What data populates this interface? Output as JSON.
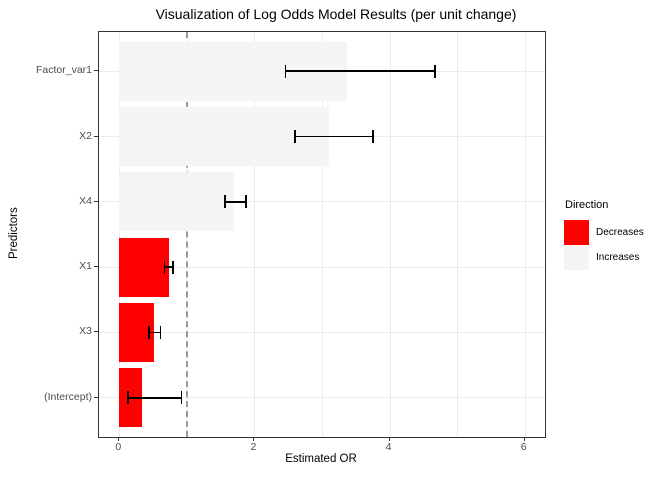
{
  "title": "Visualization of Log Odds Model Results (per unit change)",
  "chart_data": {
    "type": "bar",
    "orientation": "horizontal",
    "title": "Visualization of Log Odds Model Results (per unit change)",
    "xlabel": "Estimated OR",
    "ylabel": "Predictors",
    "xlim": [
      -0.3,
      6.3
    ],
    "x_major_ticks": [
      0,
      2,
      4,
      6
    ],
    "x_gridlines": [
      0,
      1,
      2,
      3,
      4,
      5,
      6
    ],
    "reference_line_x": 1,
    "grid": "on",
    "categories": [
      "Factor_var1",
      "X2",
      "X4",
      "X1",
      "X3",
      "(Intercept)"
    ],
    "bars": [
      {
        "label": "Factor_var1",
        "or": 3.37,
        "ci_low": 2.45,
        "ci_high": 4.68,
        "direction": "Increases"
      },
      {
        "label": "X2",
        "or": 3.1,
        "ci_low": 2.59,
        "ci_high": 3.77,
        "direction": "Increases"
      },
      {
        "label": "X4",
        "or": 1.7,
        "ci_low": 1.55,
        "ci_high": 1.89,
        "direction": "Increases"
      },
      {
        "label": "X1",
        "or": 0.73,
        "ci_low": 0.66,
        "ci_high": 0.81,
        "direction": "Decreases"
      },
      {
        "label": "X3",
        "or": 0.52,
        "ci_low": 0.43,
        "ci_high": 0.62,
        "direction": "Decreases"
      },
      {
        "label": "(Intercept)",
        "or": 0.33,
        "ci_low": 0.12,
        "ci_high": 0.93,
        "direction": "Decreases"
      }
    ],
    "legend": {
      "title": "Direction",
      "position": "right",
      "entries": [
        {
          "label": "Decreases",
          "color": "#FF0000"
        },
        {
          "label": "Increases",
          "color": "#F5F5F5"
        }
      ]
    },
    "colors": {
      "decreases": "#FF0000",
      "increases": "#F5F5F5",
      "reference_line": "#999999",
      "gridline": "#EBEBEB",
      "panel_border": "#333333",
      "axis_text": "#4D4D4D"
    }
  }
}
